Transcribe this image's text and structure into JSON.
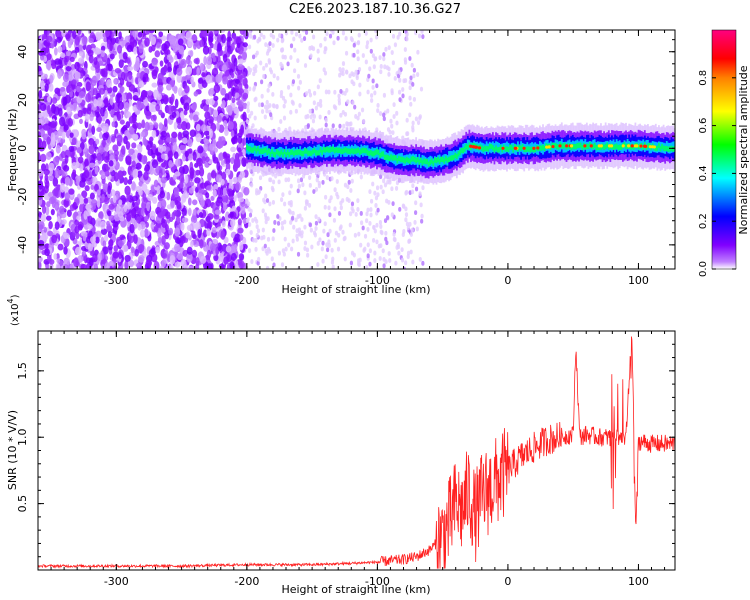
{
  "title": "C2E6.2023.187.10.36.G27",
  "chart_data": [
    {
      "type": "heatmap",
      "xlabel": "Height of straight line (km)",
      "ylabel": "Frequency (Hz)",
      "xlim": [
        -360,
        128
      ],
      "ylim": [
        -50,
        49
      ],
      "xticks": [
        -300,
        -200,
        -100,
        0,
        100
      ],
      "yticks": [
        -40,
        -20,
        0,
        20,
        40
      ],
      "colorbar": {
        "label": "Normalized spectral amplitude",
        "ticks": [
          "0.0",
          "0.2",
          "0.4",
          "0.6",
          "0.8"
        ],
        "range": [
          0,
          1
        ],
        "colormap": [
          "#ffffff",
          "#8000ff",
          "#0000ff",
          "#00ffff",
          "#00ff00",
          "#ffff00",
          "#ff0000",
          "#ff0080"
        ]
      },
      "trace": {
        "description_points_x": [
          -200,
          -180,
          -160,
          -140,
          -120,
          -100,
          -90,
          -80,
          -70,
          -60,
          -50,
          -40,
          -30,
          -20,
          0,
          20,
          40,
          60,
          80,
          100,
          128
        ],
        "description_points_y": [
          0,
          -2,
          -2,
          -1,
          -1,
          -2,
          -4,
          -5,
          -5,
          -6,
          -5,
          -3,
          1,
          0,
          0,
          0,
          1,
          1,
          1,
          1,
          0
        ]
      }
    },
    {
      "type": "line",
      "xlabel": "Height of straight line (km)",
      "ylabel": "SNR (10 * V/V)",
      "ylabel_multiplier": "(x10",
      "ylabel_exponent": "4",
      "ylabel_close": ")",
      "xlim": [
        -360,
        128
      ],
      "ylim": [
        0,
        1.8
      ],
      "xticks": [
        -300,
        -200,
        -100,
        0,
        100
      ],
      "yticks": [
        "0.5",
        "1.0",
        "1.5"
      ],
      "ytick_values": [
        0.5,
        1.0,
        1.5
      ],
      "series": [
        {
          "color": "#ff2020",
          "x": [
            -360,
            -300,
            -250,
            -200,
            -150,
            -120,
            -100,
            -80,
            -70,
            -60,
            -50,
            -45,
            -40,
            -35,
            -30,
            -25,
            -20,
            -15,
            -10,
            -5,
            0,
            10,
            20,
            30,
            40,
            50,
            52,
            55,
            60,
            70,
            80,
            90,
            95,
            98,
            100,
            110,
            128
          ],
          "y": [
            0.03,
            0.03,
            0.03,
            0.04,
            0.04,
            0.05,
            0.06,
            0.08,
            0.1,
            0.15,
            0.25,
            0.35,
            0.5,
            0.45,
            0.6,
            0.4,
            0.55,
            0.6,
            0.65,
            0.7,
            0.75,
            0.85,
            0.92,
            0.98,
            1.0,
            1.02,
            1.7,
            1.0,
            1.02,
            1.0,
            1.0,
            1.0,
            1.75,
            0.3,
            0.97,
            0.95,
            0.95
          ]
        }
      ]
    }
  ]
}
